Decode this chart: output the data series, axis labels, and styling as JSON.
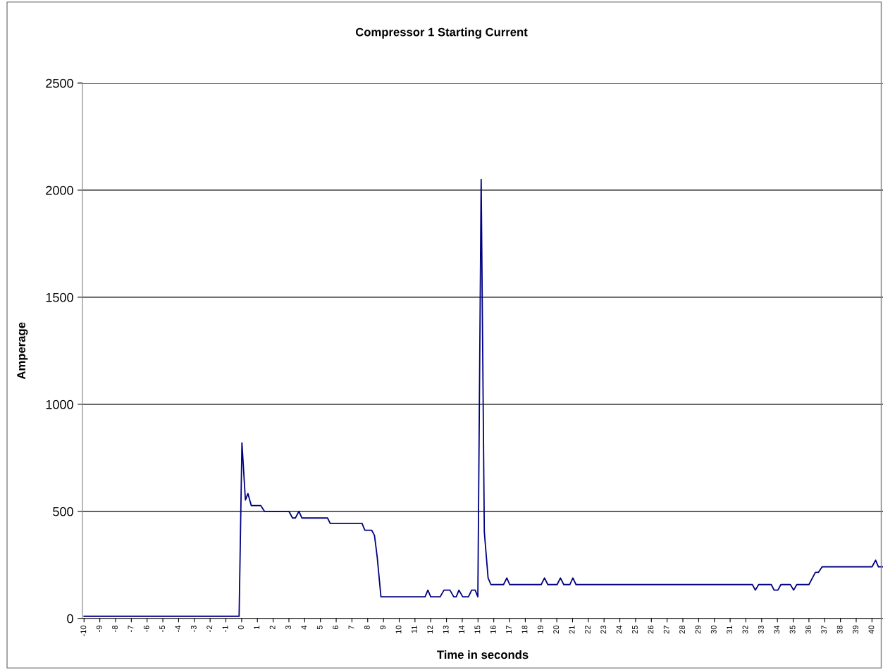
{
  "chart_data": {
    "type": "line",
    "title": "Compressor 1 Starting Current",
    "xlabel": "Time in seconds",
    "ylabel": "Amperage",
    "x": [
      -10,
      -0.16,
      0.02,
      0.24,
      0.4,
      0.61,
      1.21,
      1.45,
      3.0,
      3.23,
      3.41,
      3.64,
      3.82,
      5.45,
      5.62,
      7.64,
      7.82,
      8.25,
      8.43,
      8.6,
      8.84,
      11.64,
      11.82,
      12.0,
      12.6,
      12.84,
      13.22,
      13.46,
      13.62,
      13.79,
      14.03,
      14.39,
      14.6,
      14.82,
      14.99,
      15.2,
      15.4,
      15.64,
      15.82,
      16.62,
      16.83,
      17.01,
      19.01,
      19.22,
      19.43,
      20.02,
      20.23,
      20.44,
      20.83,
      21.02,
      21.22,
      32.41,
      32.6,
      32.81,
      33.61,
      33.79,
      34.03,
      34.22,
      34.82,
      35.03,
      35.23,
      36.0,
      36.41,
      36.6,
      36.84,
      40.01,
      40.23,
      40.41,
      40.67
    ],
    "series": [
      {
        "color": "#000080",
        "values": [
          10,
          10,
          820,
          553,
          583,
          527,
          527,
          500,
          500,
          469,
          469,
          500,
          469,
          469,
          444,
          444,
          412,
          412,
          388,
          289,
          101,
          101,
          132,
          101,
          101,
          132,
          132,
          101,
          101,
          132,
          101,
          101,
          132,
          132,
          101,
          2050,
          405,
          189,
          158,
          158,
          189,
          158,
          158,
          189,
          158,
          158,
          189,
          158,
          158,
          189,
          158,
          158,
          132,
          158,
          158,
          132,
          132,
          158,
          158,
          132,
          158,
          158,
          215,
          215,
          241,
          241,
          272,
          241,
          241
        ]
      }
    ],
    "xlim": [
      -10.1,
      40.7
    ],
    "xticks": [
      -10,
      -9,
      -8,
      -7,
      -6,
      -5,
      -4,
      -3,
      -2,
      -1,
      0,
      1,
      2,
      3,
      4,
      5,
      6,
      7,
      8,
      9,
      10,
      11,
      12,
      13,
      14,
      15,
      16,
      17,
      18,
      19,
      20,
      21,
      22,
      23,
      24,
      25,
      26,
      27,
      28,
      29,
      30,
      31,
      32,
      33,
      34,
      35,
      36,
      37,
      38,
      39,
      40
    ],
    "ylim": [
      0,
      2500
    ],
    "yticks": [
      0,
      500,
      1000,
      1500,
      2000,
      2500
    ],
    "grid": "y",
    "marker": "none",
    "line_style": "solid"
  }
}
